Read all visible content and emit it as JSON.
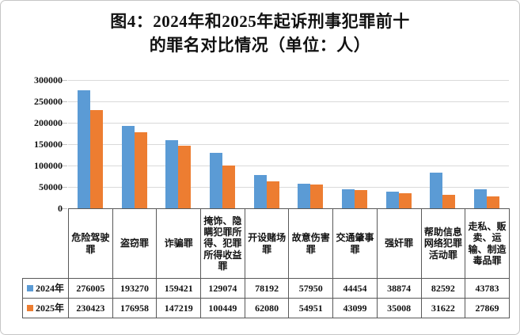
{
  "title": {
    "line1": "图4：2024年和2025年起诉刑事犯罪前十",
    "line2": "的罪名对比情况（单位：人）"
  },
  "chart_data": {
    "type": "bar",
    "title": "图4：2024年和2025年起诉刑事犯罪前十的罪名对比情况（单位：人）",
    "unit_label": "人",
    "categories": [
      "危险驾驶罪",
      "盗窃罪",
      "诈骗罪",
      "掩饰、隐瞒犯罪所得、犯罪所得收益罪",
      "开设赌场罪",
      "故意伤害罪",
      "交通肇事罪",
      "强奸罪",
      "帮助信息网络犯罪活动罪",
      "走私、贩卖、运输、制造毒品罪"
    ],
    "series": [
      {
        "name": "2024年",
        "key": "2024",
        "color": "#5B9BD5",
        "values": [
          276005,
          193270,
          159421,
          129074,
          78192,
          57950,
          44454,
          38874,
          82592,
          43783
        ]
      },
      {
        "name": "2025年",
        "key": "2025",
        "color": "#ED7D31",
        "values": [
          230423,
          176958,
          147219,
          100449,
          62080,
          54951,
          43099,
          35008,
          31622,
          27869
        ]
      }
    ],
    "ylim": [
      0,
      300000
    ],
    "ytick_labels": [
      "0",
      "50000",
      "100000",
      "150000",
      "200000",
      "250000",
      "300000"
    ],
    "grid": true,
    "legend_position": "data-table-left"
  },
  "colors": {
    "grid": "#d9d9d9",
    "table_border": "#595959",
    "frame_border": "#c6c6c6",
    "text": "#111111"
  }
}
